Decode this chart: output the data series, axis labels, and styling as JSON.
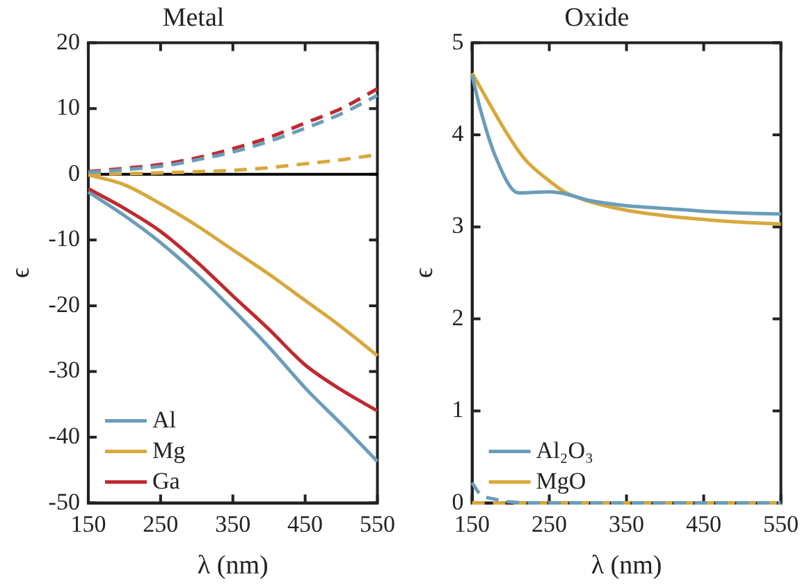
{
  "chart_data": [
    {
      "type": "line",
      "title": "Metal",
      "xlabel": "λ (nm)",
      "ylabel": "ϵ",
      "x": [
        150,
        200,
        250,
        300,
        350,
        400,
        450,
        500,
        550
      ],
      "xlim": [
        150,
        550
      ],
      "xticks": [
        150,
        250,
        350,
        450,
        550
      ],
      "ylim": [
        -50,
        20
      ],
      "yticks": [
        -50,
        -40,
        -30,
        -20,
        -10,
        0,
        10,
        20
      ],
      "grid": false,
      "legend": "bottom left",
      "marker": "none",
      "ref_lines": [
        {
          "axis": "y",
          "value": 0,
          "color": "#000000"
        }
      ],
      "series": [
        {
          "name": "Al",
          "color": "#6a9dba",
          "line_style": "solid",
          "values": [
            -2.7,
            -6.3,
            -10.4,
            -15.2,
            -20.6,
            -26.3,
            -32.5,
            -38,
            -43.7
          ]
        },
        {
          "name": "Mg",
          "color": "#d8a83c",
          "line_style": "solid",
          "values": [
            -0.1,
            -1.6,
            -4.5,
            -7.8,
            -11.5,
            -15.2,
            -19.2,
            -23.2,
            -27.6
          ]
        },
        {
          "name": "Ga",
          "color": "#bf2a2f",
          "line_style": "solid",
          "values": [
            -2.2,
            -5.2,
            -8.7,
            -13.3,
            -18.5,
            -23.6,
            -29,
            -32.8,
            -36
          ]
        },
        {
          "color": "#6a9dba",
          "line_style": "dashed",
          "values": [
            0.3,
            0.7,
            1.2,
            2.2,
            3.4,
            5,
            7,
            9.2,
            12
          ]
        },
        {
          "color": "#d8a83c",
          "line_style": "dashed",
          "values": [
            0,
            0.1,
            0.2,
            0.4,
            0.6,
            1,
            1.6,
            2.2,
            3
          ]
        },
        {
          "color": "#bf2a2f",
          "line_style": "dashed",
          "values": [
            0.4,
            0.9,
            1.5,
            2.5,
            3.9,
            5.6,
            7.8,
            10,
            13
          ]
        }
      ]
    },
    {
      "type": "line",
      "title": "Oxide",
      "xlabel": "λ (nm)",
      "ylabel": "ϵ",
      "xlim": [
        150,
        550
      ],
      "xticks": [
        150,
        250,
        350,
        450,
        550
      ],
      "ylim": [
        0,
        5
      ],
      "yticks": [
        0,
        1,
        2,
        3,
        4,
        5
      ],
      "grid": false,
      "legend": "bottom left",
      "marker": "none",
      "series": [
        {
          "name": "Al₂O₃",
          "color": "#6a9dba",
          "line_style": "solid",
          "x": [
            150,
            160,
            180,
            210,
            250,
            270,
            300,
            350,
            400,
            450,
            500,
            550
          ],
          "values": [
            4.65,
            4.3,
            3.77,
            3.37,
            3.38,
            3.36,
            3.29,
            3.23,
            3.2,
            3.17,
            3.15,
            3.14
          ]
        },
        {
          "name": "MgO",
          "color": "#d8a83c",
          "line_style": "solid",
          "x": [
            150,
            200,
            220,
            250,
            270,
            300,
            350,
            400,
            450,
            500,
            550
          ],
          "values": [
            4.67,
            3.95,
            3.72,
            3.5,
            3.38,
            3.28,
            3.18,
            3.12,
            3.08,
            3.05,
            3.03
          ]
        },
        {
          "color": "#6a9dba",
          "line_style": "dashed",
          "x": [
            150,
            160,
            180,
            200,
            250,
            350,
            450,
            550
          ],
          "values": [
            0.22,
            0.1,
            0.04,
            0.01,
            0,
            0,
            0,
            0
          ]
        },
        {
          "color": "#d8a83c",
          "line_style": "dashed",
          "x": [
            150,
            250,
            350,
            450,
            550
          ],
          "values": [
            0,
            0,
            0,
            0,
            0
          ]
        }
      ]
    }
  ]
}
